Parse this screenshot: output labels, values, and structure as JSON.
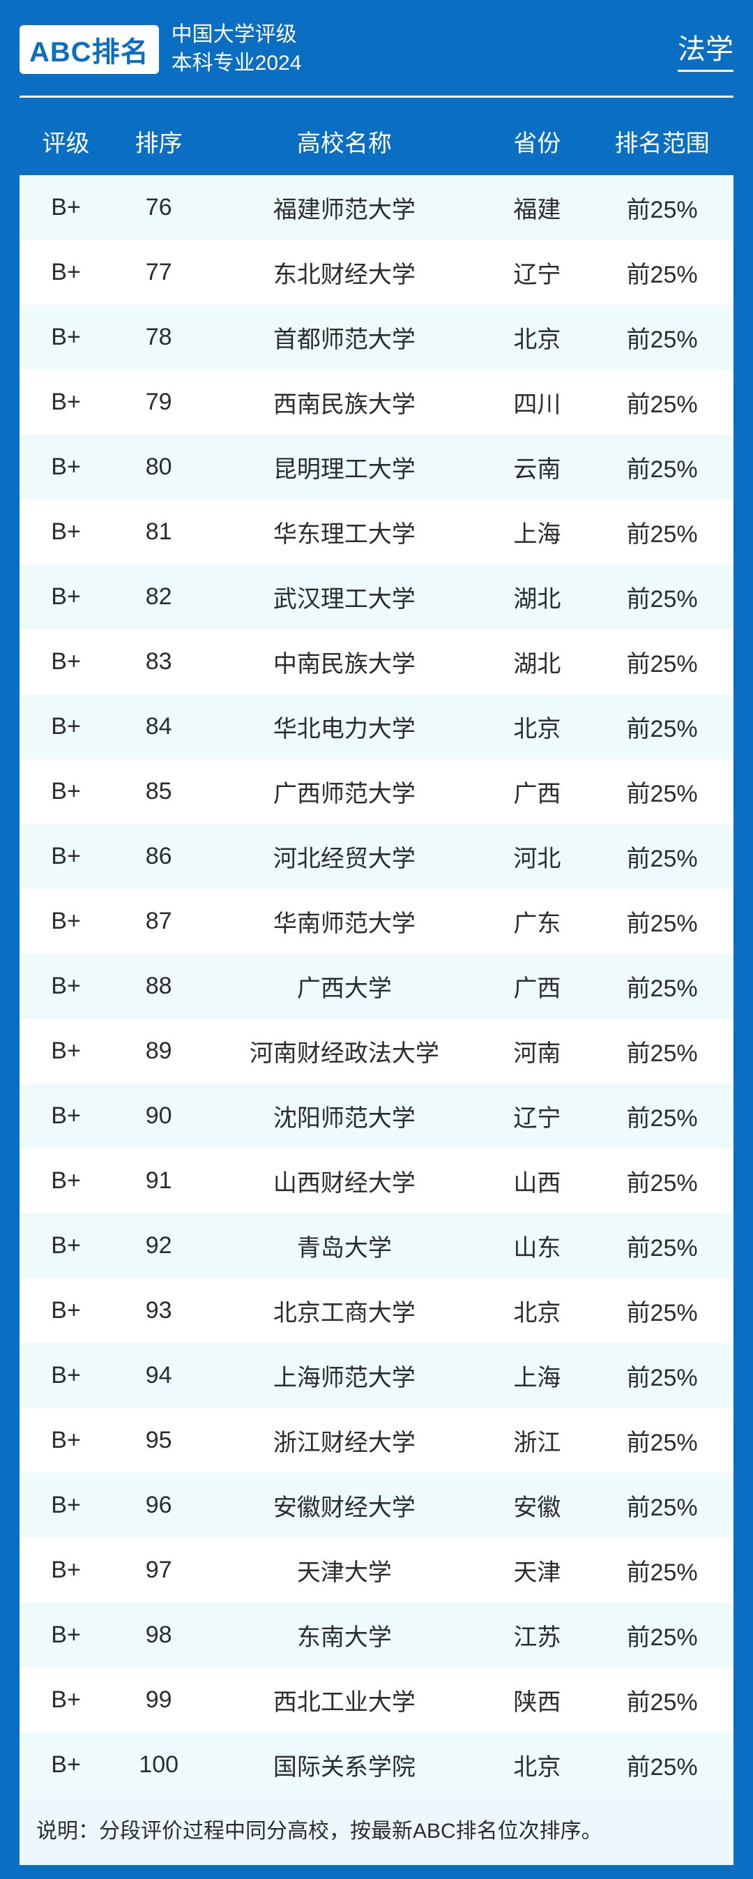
{
  "header": {
    "logo_text": "ABC排名",
    "title_line1": "中国大学评级",
    "title_line2": "本科专业2024",
    "subject": "法学"
  },
  "table": {
    "type": "table",
    "columns": [
      "评级",
      "排序",
      "高校名称",
      "省份",
      "排名范围"
    ],
    "column_keys": [
      "grade",
      "rank",
      "name",
      "province",
      "range"
    ],
    "column_widths_pct": [
      13,
      13,
      39,
      15,
      20
    ],
    "header_fontsize": 34,
    "cell_fontsize": 34,
    "header_text_color": "#ffffff",
    "cell_text_color": "#2c2c2c",
    "row_colors": {
      "odd": "#eefafb",
      "even": "#ffffff"
    },
    "rows": [
      {
        "grade": "B+",
        "rank": 76,
        "name": "福建师范大学",
        "province": "福建",
        "range": "前25%"
      },
      {
        "grade": "B+",
        "rank": 77,
        "name": "东北财经大学",
        "province": "辽宁",
        "range": "前25%"
      },
      {
        "grade": "B+",
        "rank": 78,
        "name": "首都师范大学",
        "province": "北京",
        "range": "前25%"
      },
      {
        "grade": "B+",
        "rank": 79,
        "name": "西南民族大学",
        "province": "四川",
        "range": "前25%"
      },
      {
        "grade": "B+",
        "rank": 80,
        "name": "昆明理工大学",
        "province": "云南",
        "range": "前25%"
      },
      {
        "grade": "B+",
        "rank": 81,
        "name": "华东理工大学",
        "province": "上海",
        "range": "前25%"
      },
      {
        "grade": "B+",
        "rank": 82,
        "name": "武汉理工大学",
        "province": "湖北",
        "range": "前25%"
      },
      {
        "grade": "B+",
        "rank": 83,
        "name": "中南民族大学",
        "province": "湖北",
        "range": "前25%"
      },
      {
        "grade": "B+",
        "rank": 84,
        "name": "华北电力大学",
        "province": "北京",
        "range": "前25%"
      },
      {
        "grade": "B+",
        "rank": 85,
        "name": "广西师范大学",
        "province": "广西",
        "range": "前25%"
      },
      {
        "grade": "B+",
        "rank": 86,
        "name": "河北经贸大学",
        "province": "河北",
        "range": "前25%"
      },
      {
        "grade": "B+",
        "rank": 87,
        "name": "华南师范大学",
        "province": "广东",
        "range": "前25%"
      },
      {
        "grade": "B+",
        "rank": 88,
        "name": "广西大学",
        "province": "广西",
        "range": "前25%"
      },
      {
        "grade": "B+",
        "rank": 89,
        "name": "河南财经政法大学",
        "province": "河南",
        "range": "前25%"
      },
      {
        "grade": "B+",
        "rank": 90,
        "name": "沈阳师范大学",
        "province": "辽宁",
        "range": "前25%"
      },
      {
        "grade": "B+",
        "rank": 91,
        "name": "山西财经大学",
        "province": "山西",
        "range": "前25%"
      },
      {
        "grade": "B+",
        "rank": 92,
        "name": "青岛大学",
        "province": "山东",
        "range": "前25%"
      },
      {
        "grade": "B+",
        "rank": 93,
        "name": "北京工商大学",
        "province": "北京",
        "range": "前25%"
      },
      {
        "grade": "B+",
        "rank": 94,
        "name": "上海师范大学",
        "province": "上海",
        "range": "前25%"
      },
      {
        "grade": "B+",
        "rank": 95,
        "name": "浙江财经大学",
        "province": "浙江",
        "range": "前25%"
      },
      {
        "grade": "B+",
        "rank": 96,
        "name": "安徽财经大学",
        "province": "安徽",
        "range": "前25%"
      },
      {
        "grade": "B+",
        "rank": 97,
        "name": "天津大学",
        "province": "天津",
        "range": "前25%"
      },
      {
        "grade": "B+",
        "rank": 98,
        "name": "东南大学",
        "province": "江苏",
        "range": "前25%"
      },
      {
        "grade": "B+",
        "rank": 99,
        "name": "西北工业大学",
        "province": "陕西",
        "range": "前25%"
      },
      {
        "grade": "B+",
        "rank": 100,
        "name": "国际关系学院",
        "province": "北京",
        "range": "前25%"
      }
    ]
  },
  "footer": {
    "note": "说明：分段评价过程中同分高校，按最新ABC排名位次排序。"
  },
  "colors": {
    "page_background": "#0a6fc2",
    "logo_badge_bg": "#ffffff",
    "logo_badge_text": "#0a6fc2",
    "header_text": "#ffffff",
    "divider": "#ffffff",
    "footer_bg": "#eef7fb"
  },
  "typography": {
    "logo_fontsize": 40,
    "title_fontsize": 30,
    "subject_fontsize": 40,
    "footer_fontsize": 30
  }
}
